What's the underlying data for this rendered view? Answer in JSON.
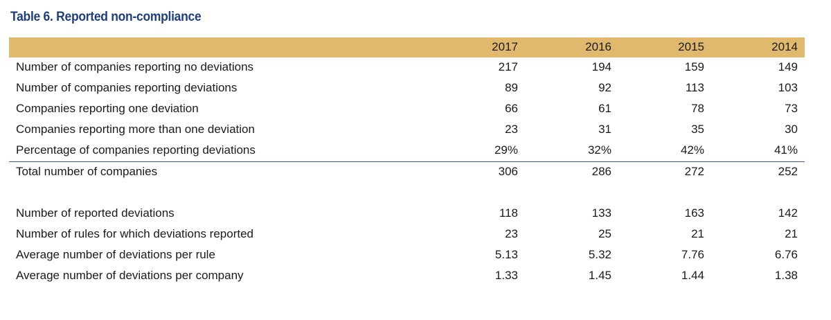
{
  "title": "Table 6. Reported non-compliance",
  "columns": [
    "2017",
    "2016",
    "2015",
    "2014"
  ],
  "rows_top": [
    {
      "label": "Number of companies reporting no deviations",
      "values": [
        "217",
        "194",
        "159",
        "149"
      ]
    },
    {
      "label": "Number of companies reporting deviations",
      "values": [
        "89",
        "92",
        "113",
        "103"
      ]
    },
    {
      "label": "Companies reporting one deviation",
      "values": [
        "66",
        "61",
        "78",
        "73"
      ]
    },
    {
      "label": "Companies reporting more than one deviation",
      "values": [
        "23",
        "31",
        "35",
        "30"
      ]
    },
    {
      "label": "Percentage of companies reporting deviations",
      "values": [
        "29%",
        "32%",
        "42%",
        "41%"
      ]
    }
  ],
  "total_row": {
    "label": "Total number of companies",
    "values": [
      "306",
      "286",
      "272",
      "252"
    ]
  },
  "rows_bottom": [
    {
      "label": "Number of reported deviations",
      "values": [
        "118",
        "133",
        "163",
        "142"
      ]
    },
    {
      "label": "Number of rules for which deviations reported",
      "values": [
        "23",
        "25",
        "21",
        "21"
      ]
    },
    {
      "label": "Average number of deviations per rule",
      "values": [
        "5.13",
        "5.32",
        "7.76",
        "6.76"
      ]
    },
    {
      "label": "Average number of deviations per company",
      "values": [
        "1.33",
        "1.45",
        "1.44",
        "1.38"
      ]
    }
  ],
  "colors": {
    "header_bg": "#e0b96e",
    "title": "#1f3f7a",
    "rule": "#3a5b94"
  }
}
